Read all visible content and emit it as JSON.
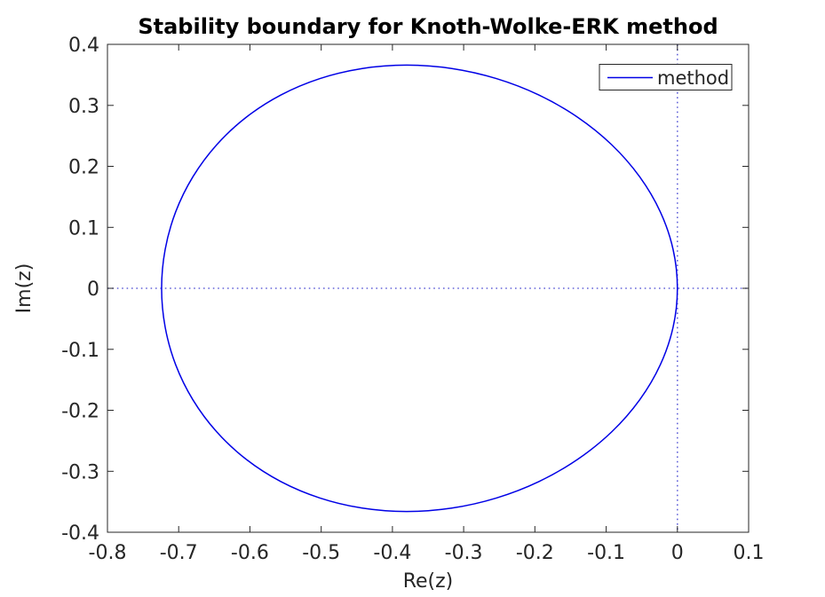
{
  "chart_data": {
    "type": "line",
    "title": "Stability boundary for Knoth-Wolke-ERK method",
    "xlabel": "Re(z)",
    "ylabel": "Im(z)",
    "xlim": [
      -0.8,
      0.1
    ],
    "ylim": [
      -0.4,
      0.4
    ],
    "x_ticks": [
      "-0.8",
      "-0.7",
      "-0.6",
      "-0.5",
      "-0.4",
      "-0.3",
      "-0.2",
      "-0.1",
      "0",
      "0.1"
    ],
    "x_tick_values": [
      -0.8,
      -0.7,
      -0.6,
      -0.5,
      -0.4,
      -0.3,
      -0.2,
      -0.1,
      0,
      0.1
    ],
    "y_ticks": [
      "0.4",
      "0.3",
      "0.2",
      "0.1",
      "0",
      "-0.1",
      "-0.2",
      "-0.3",
      "-0.4"
    ],
    "y_tick_values": [
      0.4,
      0.3,
      0.2,
      0.1,
      0,
      -0.1,
      -0.2,
      -0.3,
      -0.4
    ],
    "grid": false,
    "legend": {
      "position": "northeast",
      "entries": [
        {
          "label": "method"
        }
      ]
    },
    "reference_lines": {
      "vertical_x": 0,
      "horizontal_y": 0,
      "style": "dotted",
      "color": "#6363d9"
    },
    "series": [
      {
        "name": "method",
        "color": "#0000e6",
        "closed": true,
        "points": [
          [
            0.0,
            0.0
          ],
          [
            -0.006,
            0.0636
          ],
          [
            -0.0239,
            0.1252
          ],
          [
            -0.053,
            0.183
          ],
          [
            -0.0921,
            0.2353
          ],
          [
            -0.1399,
            0.2804
          ],
          [
            -0.1945,
            0.317
          ],
          [
            -0.2541,
            0.3439
          ],
          [
            -0.3166,
            0.3604
          ],
          [
            -0.38,
            0.366
          ],
          [
            -0.4423,
            0.3604
          ],
          [
            -0.5017,
            0.3439
          ],
          [
            -0.5565,
            0.317
          ],
          [
            -0.6053,
            0.2804
          ],
          [
            -0.6467,
            0.2353
          ],
          [
            -0.68,
            0.183
          ],
          [
            -0.7043,
            0.1252
          ],
          [
            -0.719,
            0.0636
          ],
          [
            -0.724,
            0.0
          ],
          [
            -0.719,
            -0.0636
          ],
          [
            -0.7043,
            -0.1252
          ],
          [
            -0.68,
            -0.183
          ],
          [
            -0.6467,
            -0.2353
          ],
          [
            -0.6053,
            -0.2804
          ],
          [
            -0.5565,
            -0.317
          ],
          [
            -0.5017,
            -0.3439
          ],
          [
            -0.4423,
            -0.3604
          ],
          [
            -0.38,
            -0.366
          ],
          [
            -0.3166,
            -0.3604
          ],
          [
            -0.2541,
            -0.3439
          ],
          [
            -0.1945,
            -0.317
          ],
          [
            -0.1399,
            -0.2804
          ],
          [
            -0.0921,
            -0.2353
          ],
          [
            -0.053,
            -0.183
          ],
          [
            -0.0239,
            -0.1252
          ],
          [
            -0.006,
            -0.0636
          ],
          [
            0.0,
            0.0
          ]
        ],
        "extents": {
          "re_min": -0.724,
          "re_max": 0.0,
          "im_min": -0.366,
          "im_max": 0.366
        }
      }
    ],
    "colors": {
      "curve": "#0000e6",
      "reference_dotted": "#6363d9",
      "axes": "#262626",
      "background": "#ffffff"
    }
  }
}
